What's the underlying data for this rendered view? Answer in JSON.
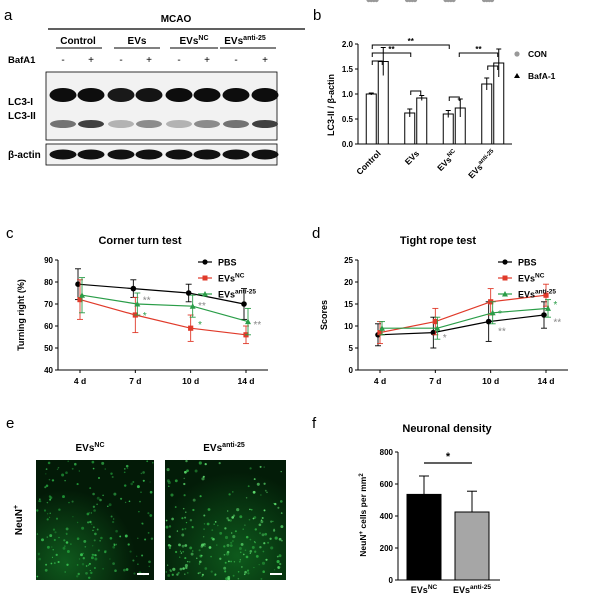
{
  "panels": {
    "a": {
      "letter": "a",
      "header": "MCAO",
      "groups": [
        "Control",
        "EVs",
        "EVs",
        "EVs"
      ],
      "group_sup": [
        "",
        "",
        "NC",
        "anti-25"
      ],
      "treatment_label": "BafA1",
      "lane_signs": [
        "-",
        "+",
        "-",
        "+",
        "-",
        "+",
        "-",
        "+"
      ],
      "blot_labels": [
        "LC3-I",
        "LC3-II",
        "β-actin"
      ]
    },
    "b": {
      "letter": "b",
      "ylabel": "LC3-II / β-actin",
      "legend": [
        "CON",
        "BafA-1"
      ],
      "sig": [
        "**",
        "**",
        "**",
        "**"
      ]
    },
    "c": {
      "letter": "c",
      "title": "Corner turn test",
      "ylabel": "Turning right (%)"
    },
    "d": {
      "letter": "d",
      "title": "Tight rope test",
      "ylabel": "Scores"
    },
    "e": {
      "letter": "e",
      "side_label": "NeuN",
      "side_sup": "+",
      "img_labels": [
        "EVs",
        "EVs"
      ],
      "img_sups": [
        "NC",
        "anti-25"
      ]
    },
    "f": {
      "letter": "f",
      "title": "Neuronal density",
      "ylabel": "NeuN",
      "ylabel_sup": "+",
      "ylabel_rest": " cells per mm",
      "ylabel_sup2": "2",
      "sig": "*"
    }
  },
  "chart_data": [
    {
      "id": "b",
      "type": "bar",
      "categories": [
        "Control",
        "EVs",
        "EVs",
        "EVs"
      ],
      "category_sups": [
        "",
        "",
        "NC",
        "anti-25"
      ],
      "series": [
        {
          "name": "CON",
          "values": [
            1.0,
            0.62,
            0.6,
            1.2
          ],
          "errors": [
            0.02,
            0.08,
            0.07,
            0.12
          ],
          "points": [
            [
              1.0,
              1.0,
              1.0
            ],
            [
              0.55,
              0.65,
              0.66
            ],
            [
              0.58,
              0.6,
              0.62
            ],
            [
              1.1,
              1.2,
              1.3
            ]
          ]
        },
        {
          "name": "BafA-1",
          "values": [
            1.65,
            0.92,
            0.72,
            1.62
          ],
          "errors": [
            0.28,
            0.05,
            0.18,
            0.28
          ],
          "points": [
            [
              1.35,
              1.7,
              1.9
            ],
            [
              0.88,
              0.93,
              0.95
            ],
            [
              0.55,
              0.7,
              0.9
            ],
            [
              1.35,
              1.65,
              1.85
            ]
          ]
        }
      ],
      "ylim": [
        0,
        2.0
      ],
      "yticks": [
        "0.0",
        "0.5",
        "1.0",
        "1.5",
        "2.0"
      ],
      "ylabel": "LC3-II / β-actin",
      "legend_position": "top-right"
    },
    {
      "id": "c",
      "type": "line",
      "title": "Corner turn test",
      "x": [
        "4 d",
        "7 d",
        "10 d",
        "14 d"
      ],
      "ylabel": "Turning right (%)",
      "ylim": [
        40,
        90
      ],
      "yticks": [
        "40",
        "50",
        "60",
        "70",
        "80",
        "90"
      ],
      "series": [
        {
          "name": "PBS",
          "sup": "",
          "color": "#000000",
          "values": [
            79,
            77,
            75,
            70
          ],
          "errors": [
            7,
            4,
            4,
            7
          ]
        },
        {
          "name": "EVs",
          "sup": "NC",
          "color": "#e03a2a",
          "values": [
            72,
            65,
            59,
            56
          ],
          "errors": [
            9,
            8,
            6,
            4
          ]
        },
        {
          "name": "EVs",
          "sup": "anti-25",
          "color": "#2a9d48",
          "values": [
            74,
            70,
            69,
            62
          ],
          "errors": [
            8,
            5,
            5,
            6
          ]
        }
      ],
      "annotations": [
        {
          "x": "7 d",
          "y": 72,
          "text": "**",
          "color": "#888888"
        },
        {
          "x": "7 d",
          "y": 65,
          "text": "*",
          "color": "#2a9d48"
        },
        {
          "x": "10 d",
          "y": 69.5,
          "text": "**",
          "color": "#888888"
        },
        {
          "x": "10 d",
          "y": 61,
          "text": "*",
          "color": "#2a9d48"
        },
        {
          "x": "14 d",
          "y": 61,
          "text": "**",
          "color": "#888888"
        }
      ],
      "legend_position": "top-right"
    },
    {
      "id": "d",
      "type": "line",
      "title": "Tight rope test",
      "x": [
        "4 d",
        "7 d",
        "10 d",
        "14 d"
      ],
      "ylabel": "Scores",
      "ylim": [
        0,
        25
      ],
      "yticks": [
        "0",
        "5",
        "10",
        "15",
        "20",
        "25"
      ],
      "series": [
        {
          "name": "PBS",
          "sup": "",
          "color": "#000000",
          "values": [
            8,
            8.5,
            11,
            12.5
          ],
          "errors": [
            2.5,
            3.5,
            4.5,
            3
          ]
        },
        {
          "name": "EVs",
          "sup": "NC",
          "color": "#e03a2a",
          "values": [
            8.5,
            11,
            15.5,
            17
          ],
          "errors": [
            2.5,
            3,
            3,
            2.5
          ]
        },
        {
          "name": "EVs",
          "sup": "anti-25",
          "color": "#2a9d48",
          "values": [
            9.5,
            9.5,
            13,
            14
          ],
          "errors": [
            1.5,
            2.5,
            2.5,
            2
          ]
        }
      ],
      "annotations": [
        {
          "x": "7 d",
          "y": 7.5,
          "text": "*",
          "color": "#888888"
        },
        {
          "x": "10 d",
          "y": 13,
          "text": "*",
          "color": "#2a9d48"
        },
        {
          "x": "10 d",
          "y": 9,
          "text": "**",
          "color": "#888888"
        },
        {
          "x": "14 d",
          "y": 15,
          "text": "*",
          "color": "#2a9d48"
        },
        {
          "x": "14 d",
          "y": 11,
          "text": "**",
          "color": "#888888"
        }
      ],
      "legend_position": "top-right"
    },
    {
      "id": "f",
      "type": "bar",
      "title": "Neuronal density",
      "categories": [
        "EVs",
        "EVs"
      ],
      "category_sups": [
        "NC",
        "anti-25"
      ],
      "values": [
        535,
        425
      ],
      "errors": [
        115,
        130
      ],
      "colors": [
        "#000000",
        "#a6a6a6"
      ],
      "ylim": [
        0,
        800
      ],
      "yticks": [
        "0",
        "200",
        "400",
        "600",
        "800"
      ]
    }
  ]
}
